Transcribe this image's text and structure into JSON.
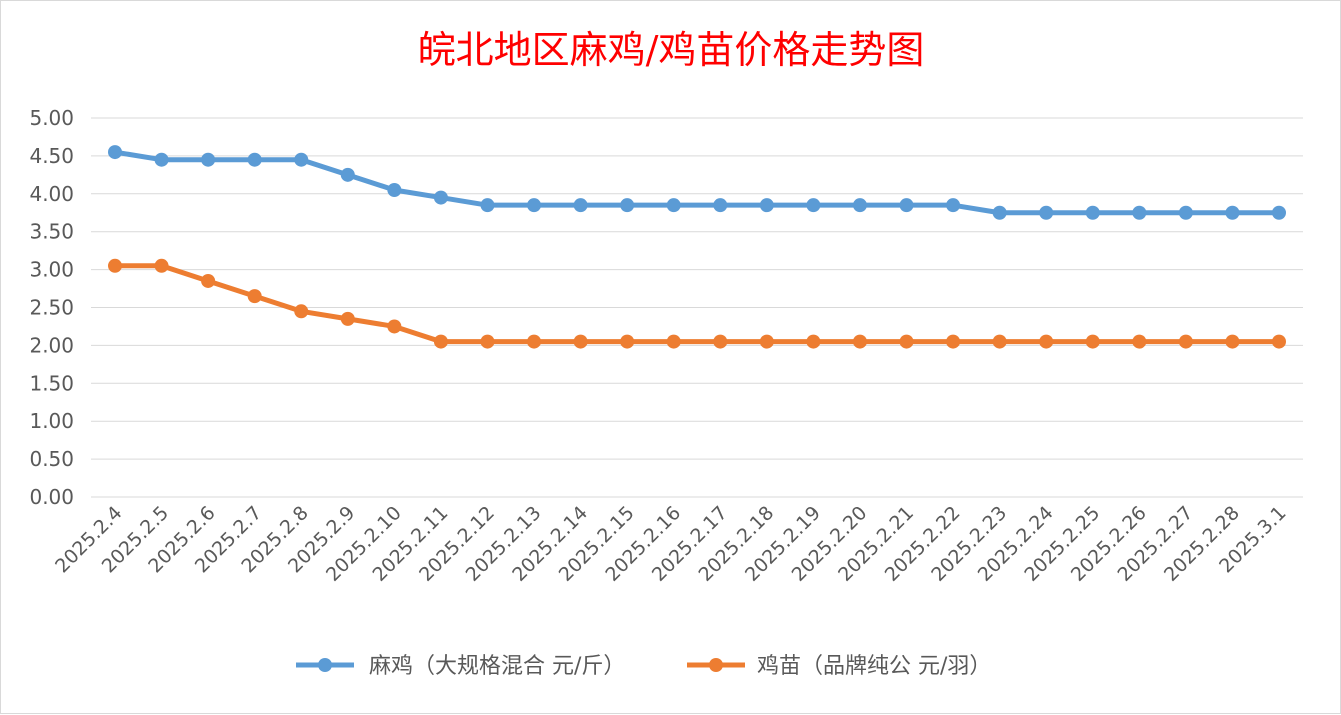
{
  "chart_data": {
    "type": "line",
    "title": "皖北地区麻鸡/鸡苗价格走势图",
    "xlabel": "",
    "ylabel": "",
    "ylim": [
      0,
      5
    ],
    "ytick_step": 0.5,
    "yticks": [
      "0.00",
      "0.50",
      "1.00",
      "1.50",
      "2.00",
      "2.50",
      "3.00",
      "3.50",
      "4.00",
      "4.50",
      "5.00"
    ],
    "grid": true,
    "legend_position": "bottom",
    "categories": [
      "2025.2.4",
      "2025.2.5",
      "2025.2.6",
      "2025.2.7",
      "2025.2.8",
      "2025.2.9",
      "2025.2.10",
      "2025.2.11",
      "2025.2.12",
      "2025.2.13",
      "2025.2.14",
      "2025.2.15",
      "2025.2.16",
      "2025.2.17",
      "2025.2.18",
      "2025.2.19",
      "2025.2.20",
      "2025.2.21",
      "2025.2.22",
      "2025.2.23",
      "2025.2.24",
      "2025.2.25",
      "2025.2.26",
      "2025.2.27",
      "2025.2.28",
      "2025.3.1"
    ],
    "series": [
      {
        "name": "麻鸡（大规格混合 元/斤）",
        "color": "#5b9bd5",
        "values": [
          4.55,
          4.45,
          4.45,
          4.45,
          4.45,
          4.25,
          4.05,
          3.95,
          3.85,
          3.85,
          3.85,
          3.85,
          3.85,
          3.85,
          3.85,
          3.85,
          3.85,
          3.85,
          3.85,
          3.75,
          3.75,
          3.75,
          3.75,
          3.75,
          3.75,
          3.75
        ]
      },
      {
        "name": "鸡苗（品牌纯公 元/羽）",
        "color": "#ed7d31",
        "values": [
          3.05,
          3.05,
          2.85,
          2.65,
          2.45,
          2.35,
          2.25,
          2.05,
          2.05,
          2.05,
          2.05,
          2.05,
          2.05,
          2.05,
          2.05,
          2.05,
          2.05,
          2.05,
          2.05,
          2.05,
          2.05,
          2.05,
          2.05,
          2.05,
          2.05,
          2.05
        ]
      }
    ]
  }
}
